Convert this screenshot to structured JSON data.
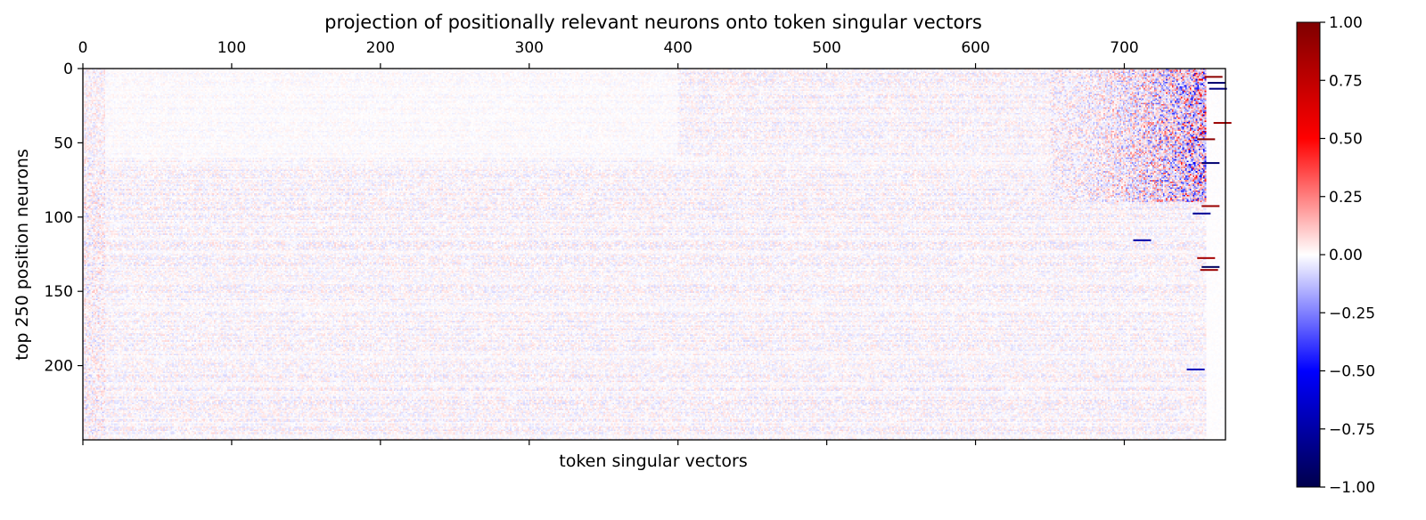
{
  "chart_data": {
    "type": "heatmap",
    "title": "projection of positionally relevant neurons onto token singular vectors",
    "xlabel": "token singular vectors",
    "ylabel": "top 250 position neurons",
    "x_ticks": [
      0,
      100,
      200,
      300,
      400,
      500,
      600,
      700
    ],
    "y_ticks": [
      0,
      50,
      100,
      150,
      200
    ],
    "x_tick_position": "top",
    "xlim": [
      0,
      768
    ],
    "ylim": [
      250,
      0
    ],
    "n_rows": 250,
    "n_cols": 768,
    "grid": false,
    "colormap": "seismic",
    "colorbar": {
      "ticks": [
        "1.00",
        "0.75",
        "0.50",
        "0.25",
        "0.00",
        "−0.25",
        "−0.50",
        "−0.75",
        "−1.00"
      ],
      "range": [
        -1,
        1
      ],
      "colors": [
        "#00004c",
        "#0000ff",
        "#ffffff",
        "#ff0000",
        "#7f0000"
      ]
    },
    "description_of_values": {
      "background_noise_amplitude": 0.06,
      "structured_band_cols": [
        650,
        755
      ],
      "structured_band_rows": [
        0,
        90
      ],
      "blank_cols": [
        755,
        768
      ],
      "notable_cells": [
        {
          "row": 5,
          "col": 760,
          "value": 0.95
        },
        {
          "row": 9,
          "col": 762,
          "value": -0.9
        },
        {
          "row": 13,
          "col": 763,
          "value": -0.85
        },
        {
          "row": 36,
          "col": 766,
          "value": 0.9
        },
        {
          "row": 47,
          "col": 755,
          "value": 0.95
        },
        {
          "row": 63,
          "col": 758,
          "value": -0.9
        },
        {
          "row": 92,
          "col": 758,
          "value": 0.9
        },
        {
          "row": 97,
          "col": 752,
          "value": -0.8
        },
        {
          "row": 115,
          "col": 712,
          "value": -0.75
        },
        {
          "row": 127,
          "col": 755,
          "value": 0.85
        },
        {
          "row": 133,
          "col": 758,
          "value": -0.95
        },
        {
          "row": 135,
          "col": 757,
          "value": 0.9
        },
        {
          "row": 202,
          "col": 748,
          "value": -0.7
        }
      ]
    }
  }
}
